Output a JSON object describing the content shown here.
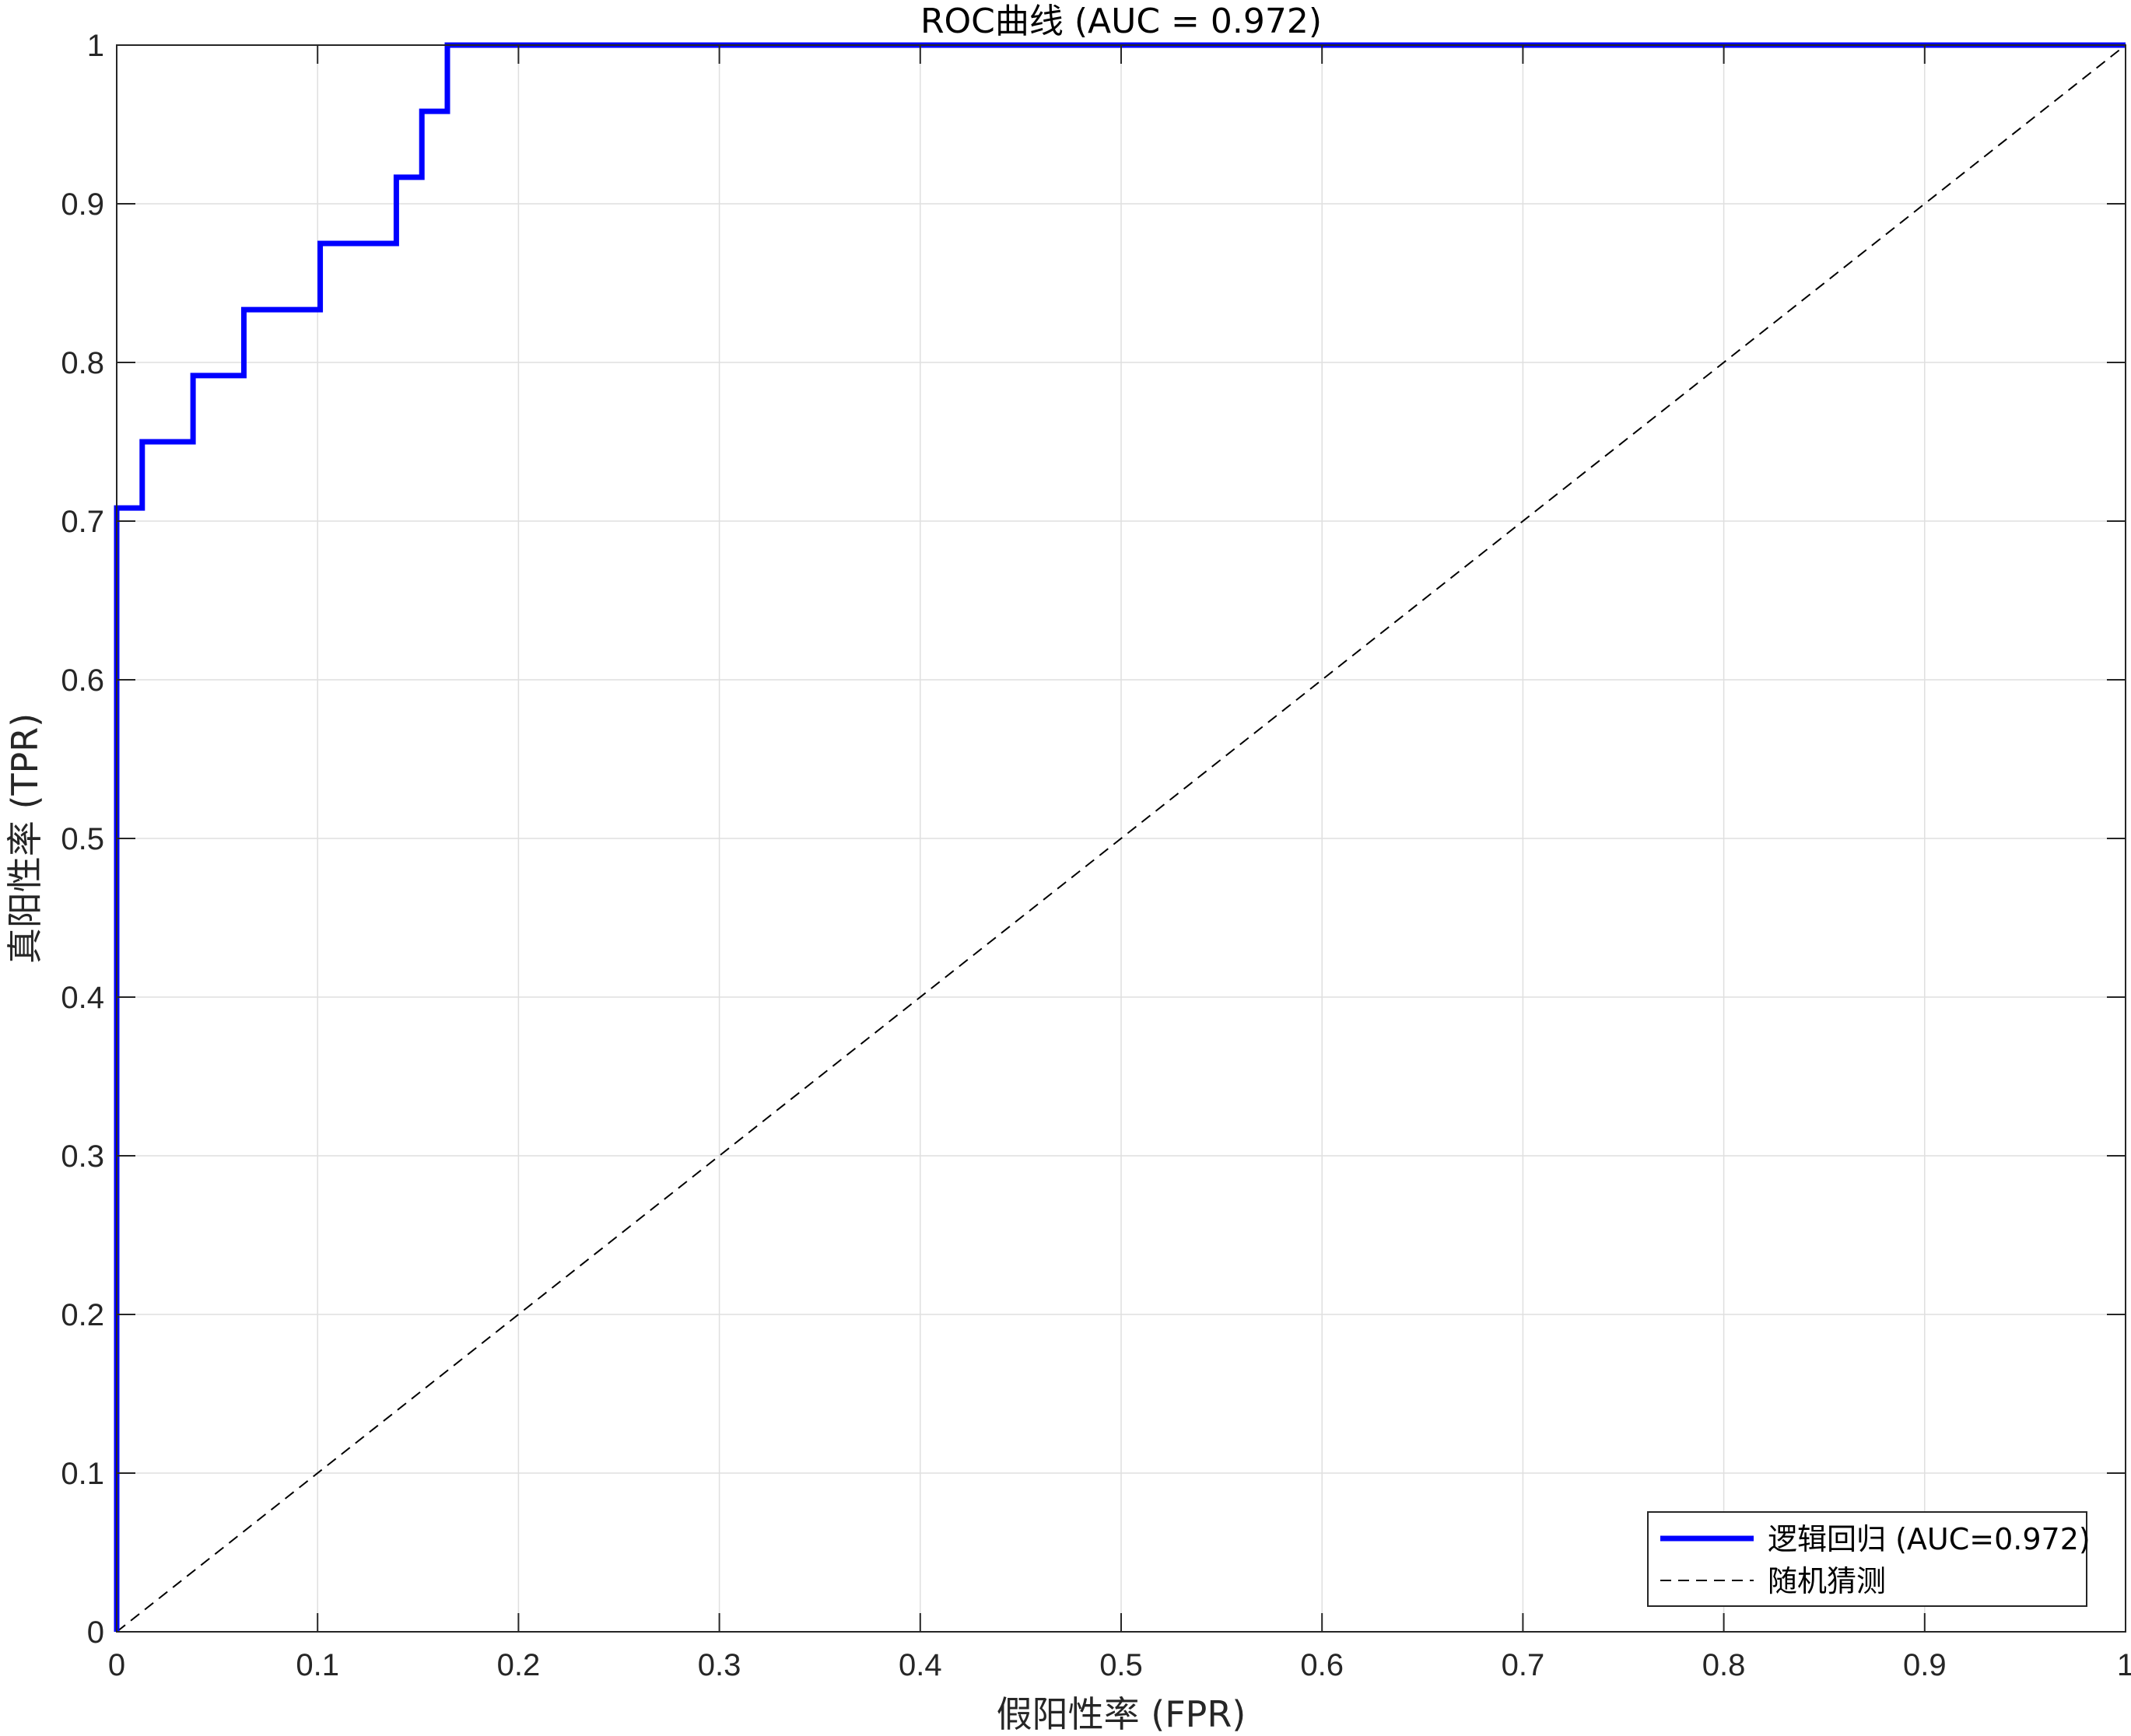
{
  "chart_data": {
    "type": "line",
    "title": "ROC曲线 (AUC = 0.972)",
    "xlabel": "假阳性率 (FPR)",
    "ylabel": "真阳性率 (TPR)",
    "xlim": [
      0,
      1
    ],
    "ylim": [
      0,
      1
    ],
    "grid": true,
    "legend_position": "bottom-right",
    "x_ticks": [
      0,
      0.1,
      0.2,
      0.3,
      0.4,
      0.5,
      0.6,
      0.7,
      0.8,
      0.9,
      1
    ],
    "x_tick_labels": [
      "0",
      "0.1",
      "0.2",
      "0.3",
      "0.4",
      "0.5",
      "0.6",
      "0.7",
      "0.8",
      "0.9",
      "1"
    ],
    "y_ticks": [
      0,
      0.1,
      0.2,
      0.3,
      0.4,
      0.5,
      0.6,
      0.7,
      0.8,
      0.9,
      1
    ],
    "y_tick_labels": [
      "0",
      "0.1",
      "0.2",
      "0.3",
      "0.4",
      "0.5",
      "0.6",
      "0.7",
      "0.8",
      "0.9",
      "1"
    ],
    "series": [
      {
        "name": "逻辑回归 (AUC=0.972)",
        "color": "#0000ff",
        "style": "solid",
        "x": [
          0,
          0,
          0.0127,
          0.0127,
          0.038,
          0.038,
          0.0633,
          0.0633,
          0.1013,
          0.1013,
          0.1392,
          0.1392,
          0.1519,
          0.1519,
          0.1646,
          0.1646,
          1
        ],
        "y": [
          0,
          0.7083,
          0.7083,
          0.75,
          0.75,
          0.7917,
          0.7917,
          0.8333,
          0.8333,
          0.875,
          0.875,
          0.9167,
          0.9167,
          0.9583,
          0.9583,
          1,
          1
        ]
      },
      {
        "name": "随机猜测",
        "color": "#000000",
        "style": "dashed",
        "x": [
          0,
          1
        ],
        "y": [
          0,
          1
        ]
      }
    ]
  }
}
